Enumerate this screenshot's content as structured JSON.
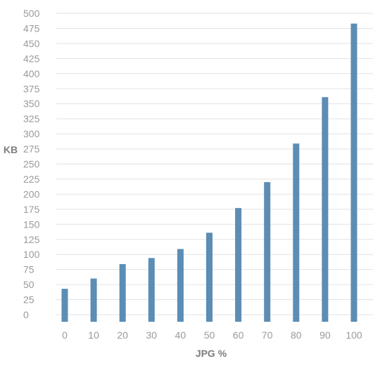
{
  "chart_data": {
    "type": "bar",
    "categories": [
      "0",
      "10",
      "20",
      "30",
      "40",
      "50",
      "60",
      "70",
      "80",
      "90",
      "100"
    ],
    "values": [
      43,
      60,
      84,
      94,
      109,
      136,
      177,
      220,
      284,
      361,
      483
    ],
    "title": "",
    "xlabel": "JPG %",
    "ylabel": "KB",
    "ylim": [
      0,
      500
    ],
    "yticks": [
      0,
      25,
      50,
      75,
      100,
      125,
      150,
      175,
      200,
      225,
      250,
      275,
      300,
      325,
      350,
      375,
      400,
      425,
      450,
      475,
      500
    ],
    "grid": true,
    "legend": "none",
    "bar_color": "#5b8db5"
  }
}
